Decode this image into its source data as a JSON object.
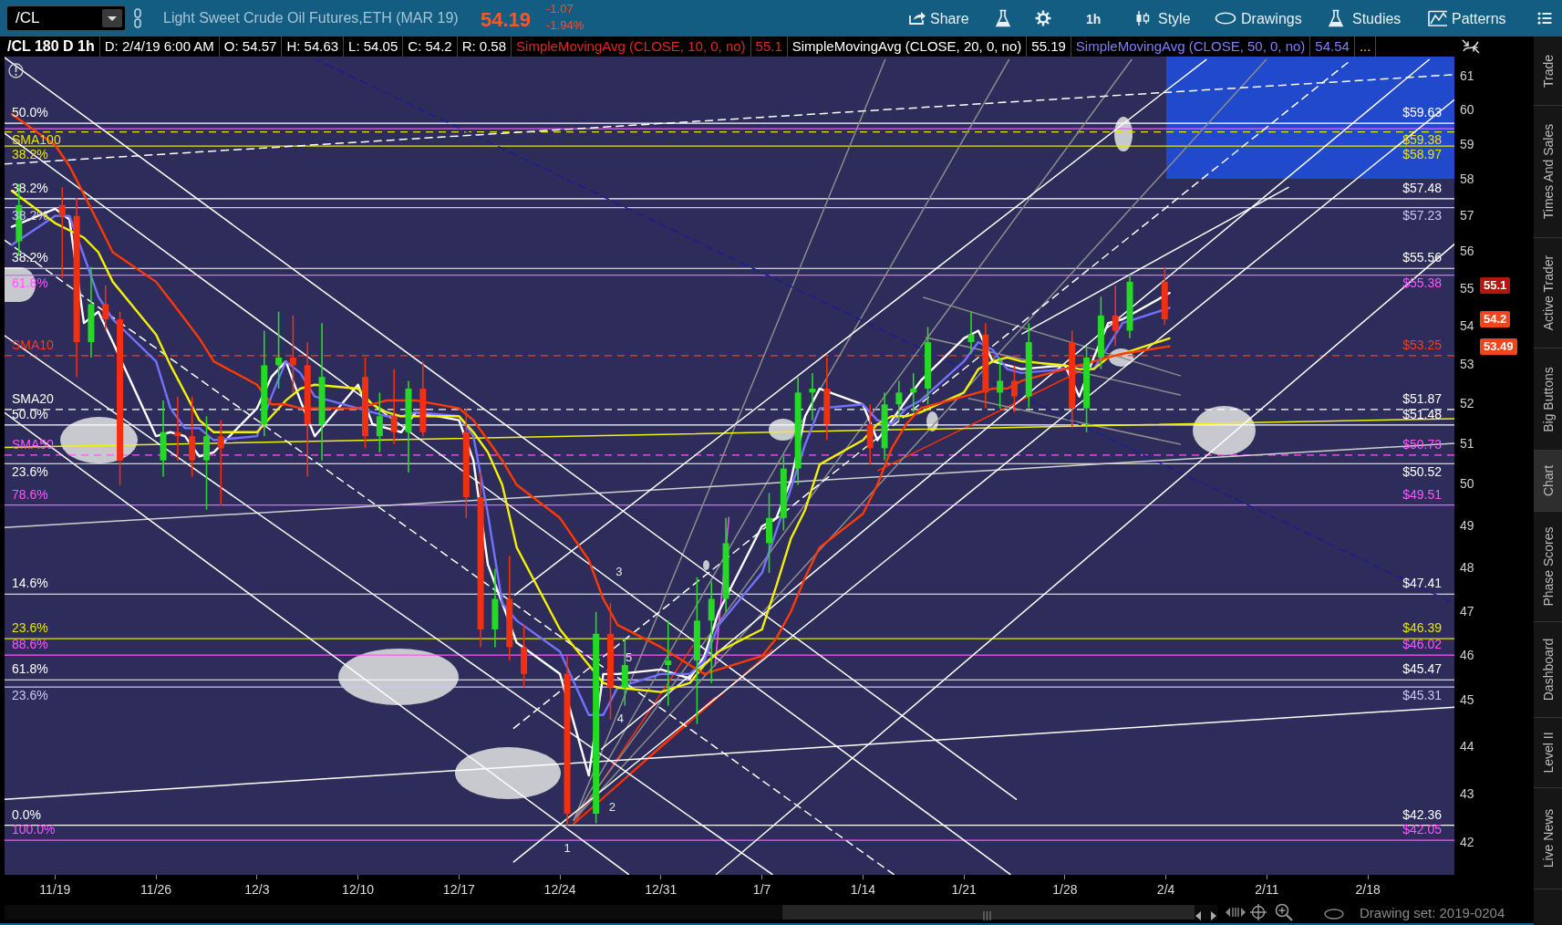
{
  "chart_data": {
    "type": "candlestick",
    "title": "Light Sweet Crude Oil Futures,ETH (MAR 19)",
    "subtitle": "/CL 180 D 1h",
    "x": [
      "2018-11-16T12:00",
      "2018-11-19T12:00",
      "2018-11-20T12:00",
      "2018-11-21T12:00",
      "2018-11-22T12:00",
      "2018-11-23T12:00",
      "2018-11-26T12:00",
      "2018-11-27T12:00",
      "2018-11-28T12:00",
      "2018-11-29T12:00",
      "2018-11-30T12:00",
      "2018-12-03T12:00",
      "2018-12-04T12:00",
      "2018-12-05T12:00",
      "2018-12-06T12:00",
      "2018-12-07T12:00",
      "2018-12-10T12:00",
      "2018-12-11T12:00",
      "2018-12-12T12:00",
      "2018-12-13T12:00",
      "2018-12-14T12:00",
      "2018-12-17T12:00",
      "2018-12-18T12:00",
      "2018-12-19T12:00",
      "2018-12-20T12:00",
      "2018-12-21T12:00",
      "2018-12-24T12:00",
      "2018-12-26T12:00",
      "2018-12-27T12:00",
      "2018-12-28T12:00",
      "2018-12-31T12:00",
      "2019-01-02T12:00",
      "2019-01-03T12:00",
      "2019-01-04T12:00",
      "2019-01-07T12:00",
      "2019-01-08T12:00",
      "2019-01-09T12:00",
      "2019-01-10T12:00",
      "2019-01-11T12:00",
      "2019-01-14T12:00",
      "2019-01-15T12:00",
      "2019-01-16T12:00",
      "2019-01-17T12:00",
      "2019-01-18T12:00",
      "2019-01-21T12:00",
      "2019-01-22T12:00",
      "2019-01-23T12:00",
      "2019-01-24T12:00",
      "2019-01-25T12:00",
      "2019-01-28T12:00",
      "2019-01-29T12:00",
      "2019-01-30T12:00",
      "2019-01-31T12:00",
      "2019-02-01T12:00",
      "2019-02-03T22:00"
    ],
    "ohlc": [
      [
        56.3,
        57.9,
        55.9,
        57.3
      ],
      [
        57.3,
        57.8,
        55.3,
        57.0
      ],
      [
        57.0,
        57.5,
        52.7,
        53.6
      ],
      [
        53.6,
        55.6,
        53.2,
        54.6
      ],
      [
        54.6,
        55.1,
        53.9,
        54.2
      ],
      [
        54.2,
        54.4,
        50.0,
        50.6
      ],
      [
        50.6,
        52.1,
        50.2,
        51.3
      ],
      [
        51.3,
        52.2,
        50.6,
        51.2
      ],
      [
        51.2,
        52.2,
        50.2,
        50.6
      ],
      [
        50.6,
        51.7,
        49.4,
        51.2
      ],
      [
        51.2,
        51.6,
        49.5,
        50.9
      ],
      [
        51.5,
        53.9,
        51.2,
        53.0
      ],
      [
        53.0,
        54.4,
        52.4,
        53.2
      ],
      [
        53.2,
        54.3,
        52.3,
        53.0
      ],
      [
        53.0,
        53.6,
        50.2,
        51.5
      ],
      [
        51.5,
        54.1,
        50.6,
        52.7
      ],
      [
        52.7,
        53.2,
        50.9,
        51.2
      ],
      [
        51.2,
        52.3,
        50.8,
        51.7
      ],
      [
        51.7,
        52.9,
        51.0,
        51.3
      ],
      [
        51.3,
        52.6,
        50.3,
        52.4
      ],
      [
        52.4,
        53.1,
        51.2,
        51.3
      ],
      [
        51.3,
        51.9,
        49.2,
        49.7
      ],
      [
        49.7,
        50.3,
        46.2,
        46.6
      ],
      [
        46.6,
        48.0,
        46.2,
        47.3
      ],
      [
        47.3,
        48.3,
        45.9,
        46.2
      ],
      [
        46.2,
        46.7,
        45.3,
        45.6
      ],
      [
        45.6,
        46.0,
        42.36,
        42.6
      ],
      [
        42.6,
        47.0,
        42.4,
        46.5
      ],
      [
        46.5,
        47.2,
        44.6,
        45.3
      ],
      [
        45.3,
        46.4,
        44.9,
        45.8
      ],
      [
        45.8,
        46.8,
        44.9,
        45.9
      ],
      [
        45.9,
        47.8,
        44.5,
        46.8
      ],
      [
        46.8,
        47.7,
        45.4,
        47.3
      ],
      [
        47.3,
        49.2,
        47.0,
        48.6
      ],
      [
        48.6,
        49.8,
        47.9,
        49.2
      ],
      [
        49.2,
        50.7,
        48.9,
        50.4
      ],
      [
        50.4,
        52.7,
        50.0,
        52.3
      ],
      [
        52.3,
        52.8,
        51.6,
        52.4
      ],
      [
        52.4,
        53.2,
        51.1,
        51.5
      ],
      [
        51.5,
        52.0,
        50.5,
        50.9
      ],
      [
        50.9,
        52.3,
        50.6,
        52.0
      ],
      [
        52.0,
        52.6,
        51.6,
        52.3
      ],
      [
        52.3,
        52.8,
        51.8,
        52.4
      ],
      [
        52.4,
        54.0,
        52.0,
        53.6
      ],
      [
        53.6,
        54.4,
        53.3,
        53.8
      ],
      [
        53.8,
        54.1,
        51.9,
        52.3
      ],
      [
        52.3,
        53.2,
        51.9,
        52.6
      ],
      [
        52.6,
        53.0,
        51.8,
        52.2
      ],
      [
        52.2,
        54.1,
        51.9,
        53.6
      ],
      [
        53.6,
        53.9,
        51.4,
        51.9
      ],
      [
        51.9,
        53.5,
        51.3,
        53.2
      ],
      [
        53.2,
        54.8,
        52.9,
        54.3
      ],
      [
        54.3,
        55.1,
        53.5,
        53.9
      ],
      [
        53.9,
        55.4,
        53.7,
        55.2
      ],
      [
        55.2,
        55.6,
        54.05,
        54.2
      ]
    ],
    "colors": [
      "#26d926",
      "#f03010",
      "#f03010",
      "#26d926",
      "#f03010",
      "#f03010",
      "#26d926",
      "#f03010",
      "#f03010",
      "#26d926",
      "#f03010",
      "#26d926",
      "#26d926",
      "#f03010",
      "#f03010",
      "#26d926",
      "#f03010",
      "#26d926",
      "#f03010",
      "#26d926",
      "#f03010",
      "#f03010",
      "#f03010",
      "#26d926",
      "#f03010",
      "#f03010",
      "#f03010",
      "#26d926",
      "#f03010",
      "#26d926",
      "#26d926",
      "#26d926",
      "#26d926",
      "#26d926",
      "#26d926",
      "#26d926",
      "#26d926",
      "#26d926",
      "#f03010",
      "#f03010",
      "#26d926",
      "#26d926",
      "#26d926",
      "#26d926",
      "#26d926",
      "#f03010",
      "#26d926",
      "#f03010",
      "#26d926",
      "#f03010",
      "#26d926",
      "#26d926",
      "#f03010",
      "#26d926",
      "#f03010"
    ],
    "series": [
      {
        "type": "line",
        "x": [
          "2018-11-16T00:00",
          "2018-11-19T00:00",
          "2018-11-20T00:00",
          "2018-11-21T00:00",
          "2018-11-22T00:00",
          "2018-11-23T00:00",
          "2018-11-26T00:00",
          "2018-11-27T00:00",
          "2018-11-28T00:00",
          "2018-11-29T00:00",
          "2018-11-30T00:00",
          "2018-12-03T00:00",
          "2018-12-04T00:00",
          "2018-12-05T00:00",
          "2018-12-06T00:00",
          "2018-12-07T00:00",
          "2018-12-10T00:00",
          "2018-12-11T00:00",
          "2018-12-12T00:00",
          "2018-12-13T00:00",
          "2018-12-14T00:00",
          "2018-12-17T00:00",
          "2018-12-18T00:00",
          "2018-12-19T00:00",
          "2018-12-20T00:00",
          "2018-12-21T00:00",
          "2018-12-24T00:00",
          "2018-12-26T00:00",
          "2018-12-27T00:00",
          "2018-12-28T00:00",
          "2018-12-31T00:00",
          "2019-01-02T00:00",
          "2019-01-03T00:00",
          "2019-01-04T00:00",
          "2019-01-07T00:00",
          "2019-01-08T00:00",
          "2019-01-09T00:00",
          "2019-01-10T00:00",
          "2019-01-11T00:00",
          "2019-01-14T00:00",
          "2019-01-15T00:00",
          "2019-01-16T00:00",
          "2019-01-17T00:00",
          "2019-01-18T00:00",
          "2019-01-21T00:00",
          "2019-01-22T00:00",
          "2019-01-23T00:00",
          "2019-01-24T00:00",
          "2019-01-25T00:00",
          "2019-01-28T00:00",
          "2019-01-29T00:00",
          "2019-01-30T00:00",
          "2019-01-31T00:00",
          "2019-02-01T00:00",
          "2019-02-04T06:00"
        ],
        "values": [
          59.9,
          59.0,
          58.4,
          57.6,
          56.8,
          56.0,
          55.2,
          54.7,
          54.2,
          53.7,
          53.1,
          52.5,
          52.0,
          52.0,
          51.9,
          51.9,
          51.9,
          52.0,
          52.1,
          52.1,
          52.1,
          51.9,
          51.6,
          51.1,
          50.6,
          50.0,
          49.2,
          48.2,
          47.3,
          46.7,
          46.2,
          45.8,
          45.6,
          45.7,
          46.0,
          46.4,
          47.0,
          47.8,
          48.5,
          49.3,
          50.0,
          50.9,
          51.5,
          51.9,
          52.2,
          52.3,
          52.4,
          52.4,
          52.6,
          52.9,
          53.0,
          53.1,
          53.2,
          53.3,
          53.49
        ],
        "color": "#ff3a00"
      },
      {
        "type": "line",
        "x": [
          "2018-11-16T00:00",
          "2018-11-19T00:00",
          "2018-11-20T00:00",
          "2018-11-21T00:00",
          "2018-11-22T00:00",
          "2018-11-23T00:00",
          "2018-11-26T00:00",
          "2018-11-27T00:00",
          "2018-11-28T00:00",
          "2018-11-29T00:00",
          "2018-11-30T00:00",
          "2018-12-03T00:00",
          "2018-12-04T00:00",
          "2018-12-05T00:00",
          "2018-12-06T00:00",
          "2018-12-07T00:00",
          "2018-12-10T00:00",
          "2018-12-11T00:00",
          "2018-12-12T00:00",
          "2018-12-13T00:00",
          "2018-12-14T00:00",
          "2018-12-17T00:00",
          "2018-12-18T00:00",
          "2018-12-19T00:00",
          "2018-12-20T00:00",
          "2018-12-21T00:00",
          "2018-12-24T00:00",
          "2018-12-26T00:00",
          "2018-12-27T00:00",
          "2018-12-28T00:00",
          "2018-12-31T00:00",
          "2019-01-02T00:00",
          "2019-01-03T00:00",
          "2019-01-04T00:00",
          "2019-01-07T00:00",
          "2019-01-08T00:00",
          "2019-01-09T00:00",
          "2019-01-10T00:00",
          "2019-01-11T00:00",
          "2019-01-14T00:00",
          "2019-01-15T00:00",
          "2019-01-16T00:00",
          "2019-01-17T00:00",
          "2019-01-18T00:00",
          "2019-01-21T00:00",
          "2019-01-22T00:00",
          "2019-01-23T00:00",
          "2019-01-24T00:00",
          "2019-01-25T00:00",
          "2019-01-28T00:00",
          "2019-01-29T00:00",
          "2019-01-30T00:00",
          "2019-01-31T00:00",
          "2019-02-01T00:00",
          "2019-02-04T06:00"
        ],
        "values": [
          57.7,
          56.8,
          56.6,
          56.4,
          56.0,
          55.2,
          53.8,
          53.0,
          52.3,
          51.6,
          51.3,
          51.3,
          51.7,
          52.1,
          52.4,
          52.5,
          52.4,
          52.0,
          51.8,
          51.7,
          51.7,
          51.7,
          51.3,
          50.8,
          50.0,
          48.5,
          46.6,
          45.8,
          45.4,
          45.3,
          45.2,
          45.4,
          45.8,
          46.1,
          46.6,
          47.6,
          48.7,
          49.4,
          50.5,
          51.1,
          51.5,
          51.7,
          51.7,
          51.8,
          52.3,
          52.9,
          53.1,
          53.2,
          53.1,
          53.0,
          52.9,
          52.9,
          53.2,
          53.3,
          53.7
        ],
        "color": "#f2f200"
      },
      {
        "type": "line",
        "x": [
          "2018-11-16T00:00",
          "2018-11-19T00:00",
          "2018-11-20T00:00",
          "2018-11-21T00:00",
          "2018-11-22T00:00",
          "2018-11-23T00:00",
          "2018-11-26T00:00",
          "2018-11-27T00:00",
          "2018-11-28T00:00",
          "2018-11-29T00:00",
          "2018-11-30T00:00",
          "2018-12-03T00:00",
          "2018-12-04T00:00",
          "2018-12-05T00:00",
          "2018-12-06T00:00",
          "2018-12-07T00:00",
          "2018-12-10T00:00",
          "2018-12-11T00:00",
          "2018-12-12T00:00",
          "2018-12-13T00:00",
          "2018-12-14T00:00",
          "2018-12-17T00:00",
          "2018-12-18T00:00",
          "2018-12-19T00:00",
          "2018-12-20T00:00",
          "2018-12-21T00:00",
          "2018-12-24T00:00",
          "2018-12-26T00:00",
          "2018-12-27T00:00",
          "2018-12-28T00:00",
          "2018-12-31T00:00",
          "2019-01-02T00:00",
          "2019-01-03T00:00",
          "2019-01-04T00:00",
          "2019-01-07T00:00",
          "2019-01-08T00:00",
          "2019-01-09T00:00",
          "2019-01-10T00:00",
          "2019-01-11T00:00",
          "2019-01-14T00:00",
          "2019-01-15T00:00",
          "2019-01-16T00:00",
          "2019-01-17T00:00",
          "2019-01-18T00:00",
          "2019-01-21T00:00",
          "2019-01-22T00:00",
          "2019-01-23T00:00",
          "2019-01-24T00:00",
          "2019-01-25T00:00",
          "2019-01-28T00:00",
          "2019-01-29T00:00",
          "2019-01-30T00:00",
          "2019-01-31T00:00",
          "2019-02-01T00:00",
          "2019-02-04T06:00"
        ],
        "values": [
          56.2,
          57.0,
          57.0,
          55.9,
          54.8,
          54.2,
          53.1,
          51.9,
          51.4,
          51.4,
          51.1,
          51.2,
          52.2,
          53.1,
          52.8,
          52.2,
          51.9,
          51.8,
          51.7,
          51.7,
          51.8,
          51.7,
          51.2,
          49.3,
          47.2,
          46.8,
          46.1,
          44.7,
          44.7,
          45.3,
          45.6,
          45.6,
          45.9,
          46.7,
          47.9,
          48.9,
          49.9,
          51.0,
          51.9,
          52.0,
          51.6,
          51.5,
          51.9,
          52.1,
          53.1,
          53.6,
          53.4,
          52.9,
          52.8,
          52.9,
          53.0,
          52.9,
          53.5,
          54.1,
          54.5
        ],
        "color": "#7272ff"
      },
      {
        "type": "line",
        "x": [
          "2018-11-16T00:00",
          "2018-11-19T00:00",
          "2018-11-20T00:00",
          "2018-11-21T00:00",
          "2018-11-22T00:00",
          "2018-11-23T00:00",
          "2018-11-26T00:00",
          "2018-11-27T00:00",
          "2018-11-28T00:00",
          "2018-11-29T00:00",
          "2018-11-30T00:00",
          "2018-12-03T00:00",
          "2018-12-04T00:00",
          "2018-12-05T00:00",
          "2018-12-06T00:00",
          "2018-12-07T00:00",
          "2018-12-10T00:00",
          "2018-12-11T00:00",
          "2018-12-12T00:00",
          "2018-12-13T00:00",
          "2018-12-14T00:00",
          "2018-12-17T00:00",
          "2018-12-18T00:00",
          "2018-12-19T00:00",
          "2018-12-20T00:00",
          "2018-12-21T00:00",
          "2018-12-24T00:00",
          "2018-12-26T00:00",
          "2018-12-27T00:00",
          "2018-12-28T00:00",
          "2018-12-31T00:00",
          "2019-01-02T00:00",
          "2019-01-03T00:00",
          "2019-01-04T00:00",
          "2019-01-07T00:00",
          "2019-01-08T00:00",
          "2019-01-09T00:00",
          "2019-01-10T00:00",
          "2019-01-11T00:00",
          "2019-01-14T00:00",
          "2019-01-15T00:00",
          "2019-01-16T00:00",
          "2019-01-17T00:00",
          "2019-01-18T00:00",
          "2019-01-21T00:00",
          "2019-01-22T00:00",
          "2019-01-23T00:00",
          "2019-01-24T00:00",
          "2019-01-25T00:00",
          "2019-01-28T00:00",
          "2019-01-29T00:00",
          "2019-01-30T00:00",
          "2019-01-31T00:00",
          "2019-02-01T00:00",
          "2019-02-04T06:00"
        ],
        "values": [
          56.7,
          57.2,
          56.9,
          54.1,
          54.4,
          53.6,
          51.2,
          51.3,
          51.2,
          50.7,
          50.8,
          51.9,
          52.7,
          53.1,
          52.1,
          51.2,
          52.5,
          51.5,
          51.4,
          51.3,
          51.8,
          51.6,
          50.6,
          48.1,
          47.2,
          46.3,
          45.6,
          43.4,
          45.6,
          45.6,
          45.7,
          45.5,
          46.0,
          47.0,
          49.0,
          49.2,
          50.1,
          51.7,
          52.4,
          52.0,
          51.1,
          51.6,
          52.1,
          52.6,
          53.7,
          53.9,
          53.1,
          53.0,
          52.9,
          53.0,
          52.2,
          53.2,
          54.1,
          54.2,
          54.9
        ],
        "color": "#ffffff"
      },
      {
        "type": "line",
        "x": [
          "2018-11-15T12:00",
          "2019-01-24T15:00"
        ],
        "values": [
          61.57,
          42.9
        ],
        "color": "#ffffff"
      },
      {
        "type": "line",
        "x": [
          "2018-11-15T12:00",
          "2019-01-24T05:00"
        ],
        "values": [
          59.34,
          41.36
        ],
        "color": "#ffffff"
      },
      {
        "type": "line",
        "x": [
          "2018-11-15T12:00",
          "2019-01-16T03:00"
        ],
        "values": [
          56.33,
          41.36
        ],
        "color": "#ffffff",
        "line_style": "dashed"
      },
      {
        "type": "line",
        "x": [
          "2018-11-15T12:00",
          "2019-01-07T17:00"
        ],
        "values": [
          53.77,
          41.36
        ],
        "color": "#ffffff"
      },
      {
        "type": "line",
        "x": [
          "2018-11-15T12:00",
          "2018-12-28T18:00"
        ],
        "values": [
          51.79,
          41.36
        ],
        "color": "#ffffff"
      },
      {
        "type": "line",
        "x": [
          "2018-12-20T19:00",
          "2019-02-24T00:00"
        ],
        "values": [
          41.61,
          60.32
        ],
        "color": "#ffffff"
      },
      {
        "type": "line",
        "x": [
          "2018-12-26T21:00",
          "2019-02-22T06:00"
        ],
        "values": [
          43.96,
          61.51
        ],
        "color": "#ffffff"
      },
      {
        "type": "line",
        "x": [
          "2018-12-20T19:00",
          "2019-02-16T21:00"
        ],
        "values": [
          44.41,
          61.51
        ],
        "color": "#ffffff",
        "line_style": "dashed"
      },
      {
        "type": "line",
        "x": [
          "2018-12-20T21:00",
          "2019-02-06T19:00"
        ],
        "values": [
          47.39,
          61.51
        ],
        "color": "#ffffff"
      },
      {
        "type": "line",
        "x": [
          "2019-01-03T20:00",
          "2019-02-24T00:00"
        ],
        "values": [
          41.36,
          56.22
        ],
        "color": "#ffffff"
      },
      {
        "type": "line",
        "x": [
          "2019-01-25T01:00",
          "2019-02-12T12:00"
        ],
        "values": [
          53.82,
          57.8
        ],
        "color": "#ffffff"
      },
      {
        "type": "line",
        "x": [
          "2018-11-15T12:00",
          "2019-02-24T00:00"
        ],
        "values": [
          58.46,
          61.06
        ],
        "color": "#ffffff",
        "line_style": "dashed"
      },
      {
        "type": "line",
        "x": [
          "2018-11-15T12:00",
          "2019-02-24T00:00"
        ],
        "values": [
          42.9,
          44.87
        ],
        "color": "#ffffff"
      },
      {
        "type": "line",
        "x": [
          "2018-11-15T12:00",
          "2019-02-24T00:00"
        ],
        "values": [
          48.97,
          51.02
        ],
        "color": "#d0d0d0"
      },
      {
        "type": "line",
        "x": [
          "2018-11-15T12:00",
          "2019-02-24T00:00"
        ],
        "values": [
          50.92,
          51.64
        ],
        "color": "#f2f200"
      },
      {
        "type": "line",
        "x": [
          "2018-12-06T23:00",
          "2019-02-23T18:00"
        ],
        "values": [
          61.54,
          47.23
        ],
        "color": "#1c1c96",
        "line_style": "dashed"
      },
      {
        "type": "line",
        "x": [
          "2018-12-24T23:00",
          "2019-01-15T13:00"
        ],
        "values": [
          42.47,
          61.51
        ],
        "color": "#8c8c8c"
      },
      {
        "type": "line",
        "x": [
          "2018-12-24T23:00",
          "2019-01-24T03:00"
        ],
        "values": [
          42.47,
          61.51
        ],
        "color": "#8c8c8c"
      },
      {
        "type": "line",
        "x": [
          "2018-12-24T23:00",
          "2019-02-01T15:00"
        ],
        "values": [
          42.47,
          61.51
        ],
        "color": "#8c8c8c"
      },
      {
        "type": "line",
        "x": [
          "2018-12-24T23:00",
          "2019-02-10T23:00"
        ],
        "values": [
          42.47,
          61.51
        ],
        "color": "#8c8c8c"
      },
      {
        "type": "line",
        "x": [
          "2019-01-18T05:00",
          "2019-02-05T00:00"
        ],
        "values": [
          54.78,
          52.73
        ],
        "color": "#8c8c8c"
      },
      {
        "type": "line",
        "x": [
          "2019-01-18T09:00",
          "2019-02-05T00:00"
        ],
        "values": [
          53.72,
          52.24
        ],
        "color": "#8c8c8c"
      },
      {
        "type": "line",
        "x": [
          "2019-01-21T08:00",
          "2019-02-05T00:00"
        ],
        "values": [
          52.15,
          51.0
        ],
        "color": "#8c8c8c"
      },
      {
        "type": "line",
        "x": [
          "2018-12-24T23:00",
          "2019-01-02T05:00"
        ],
        "values": [
          42.39,
          46.23
        ],
        "color": "#ff3000"
      },
      {
        "type": "line",
        "x": [
          "2018-12-24T23:00",
          "2019-01-07T17:00"
        ],
        "values": [
          42.39,
          46.14
        ],
        "color": "#ff3000"
      },
      {
        "type": "line",
        "x": [
          "2018-12-24T23:00",
          "2019-01-03T18:00"
        ],
        "values": [
          42.39,
          45.08
        ],
        "color": "#ff3000"
      },
      {
        "type": "line",
        "x": [
          "2019-01-15T01:00",
          "2019-01-29T02:00"
        ],
        "values": [
          50.35,
          52.85
        ],
        "color": "#ff3000"
      },
      {
        "type": "line",
        "x": [
          "2019-01-03T18:00",
          "2019-01-04T17:00"
        ],
        "values": [
          45.78,
          49.21
        ],
        "color": "#ff55ff"
      }
    ],
    "xlim": [
      "2018-11-15T12:00",
      "2019-02-24T00:00"
    ],
    "xticks": [
      {
        "value": "2018-11-19",
        "label": "11/19"
      },
      {
        "value": "2018-11-26",
        "label": "11/26"
      },
      {
        "value": "2018-12-03",
        "label": "12/3"
      },
      {
        "value": "2018-12-10",
        "label": "12/10"
      },
      {
        "value": "2018-12-17",
        "label": "12/17"
      },
      {
        "value": "2018-12-24",
        "label": "12/24"
      },
      {
        "value": "2018-12-31",
        "label": "12/31"
      },
      {
        "value": "2019-01-07",
        "label": "1/7"
      },
      {
        "value": "2019-01-14",
        "label": "1/14"
      },
      {
        "value": "2019-01-21",
        "label": "1/21"
      },
      {
        "value": "2019-01-28",
        "label": "1/28"
      },
      {
        "value": "2019-02-04",
        "label": "2/4"
      },
      {
        "value": "2019-02-11",
        "label": "2/11"
      },
      {
        "value": "2019-02-18",
        "label": "2/18"
      }
    ],
    "ylim": [
      41.35,
      61.6
    ],
    "yticks": [
      42,
      43,
      44,
      45,
      46,
      47,
      48,
      49,
      50,
      51,
      52,
      53,
      54,
      55,
      56,
      57,
      58,
      59,
      60,
      61
    ],
    "log": true,
    "ref_lines": [
      {
        "axis": "y",
        "value": 59.63,
        "label": "$59.63",
        "color": "#ffffff"
      },
      {
        "axis": "y",
        "value": 59.47,
        "color": "#ff55ff"
      },
      {
        "axis": "y",
        "value": 59.38,
        "label": "$59.38",
        "color": "#e6e600",
        "line_style": "dashed"
      },
      {
        "axis": "y",
        "value": 58.97,
        "label": "$58.97",
        "color": "#e6e600"
      },
      {
        "axis": "y",
        "value": 57.48,
        "label": "$57.48",
        "color": "#ffffff"
      },
      {
        "axis": "y",
        "value": 57.23,
        "label": "$57.23",
        "color": "#c8c8f0"
      },
      {
        "axis": "y",
        "value": 55.56,
        "label": "$55.56",
        "color": "#ffffff"
      },
      {
        "axis": "y",
        "value": 55.38,
        "label": "$55.38",
        "color": "#ff55ff"
      },
      {
        "axis": "y",
        "value": 53.25,
        "label": "$53.25",
        "color": "#ff3a1a",
        "line_style": "dashed"
      },
      {
        "axis": "y",
        "value": 51.87,
        "label": "$51.87",
        "color": "#ffffff",
        "line_style": "dashed"
      },
      {
        "axis": "y",
        "value": 51.48,
        "label": "$51.48",
        "color": "#ffffff"
      },
      {
        "axis": "y",
        "value": 50.73,
        "label": "$50.73",
        "color": "#ff55ff",
        "line_style": "dashed"
      },
      {
        "axis": "y",
        "value": 50.52,
        "label": "$50.52",
        "color": "#ffffff"
      },
      {
        "axis": "y",
        "value": 49.51,
        "label": "$49.51",
        "color": "#ff55ff"
      },
      {
        "axis": "y",
        "value": 47.41,
        "label": "$47.41",
        "color": "#ffffff"
      },
      {
        "axis": "y",
        "value": 46.39,
        "label": "$46.39",
        "color": "#e6e600"
      },
      {
        "axis": "y",
        "value": 46.02,
        "label": "$46.02",
        "color": "#ff55ff"
      },
      {
        "axis": "y",
        "value": 45.47,
        "label": "$45.47",
        "color": "#ffffff"
      },
      {
        "axis": "y",
        "value": 45.31,
        "label": "$45.31",
        "color": "#c8c8f0"
      },
      {
        "axis": "y",
        "value": 42.36,
        "label": "$42.36",
        "color": "#ffffff"
      },
      {
        "axis": "y",
        "value": 42.05,
        "label": "$42.05",
        "color": "#ff55ff"
      }
    ],
    "annotations": [
      "/CL",
      "54.19",
      "-1.07",
      "-1.94%",
      "Share",
      "1h",
      "Style",
      "Drawings",
      "Studies",
      "Patterns",
      "D: 2/4/19 6:00 AM",
      "O: 54.57",
      "H: 54.63",
      "L: 54.05",
      "C: 54.2",
      "R: 0.58",
      "SimpleMovingAvg (CLOSE, 10, 0, no)",
      "55.1",
      "SimpleMovingAvg (CLOSE, 20, 0, no)",
      "55.19",
      "SimpleMovingAvg (CLOSE, 50, 0, no)",
      "54.54",
      "...",
      "Trade",
      "Times And Sales",
      "Active Trader",
      "Big Buttons",
      "Chart",
      "Phase Scores",
      "Dashboard",
      "Level II",
      "Live News",
      "Drawing set: 2019-0204",
      "55.1",
      "54.2",
      "53.49",
      {
        "text": "50.0%",
        "x": "2018-11-15T12:00",
        "y": 59.63
      },
      {
        "text": "SMA100",
        "x": "2018-11-15T12:00",
        "y": 59.38
      },
      {
        "text": "38.2%",
        "x": "2018-11-15T12:00",
        "y": 58.97
      },
      {
        "text": "38.2%",
        "x": "2018-11-15T12:00",
        "y": 57.48
      },
      {
        "text": "38.2%",
        "x": "2018-11-15T12:00",
        "y": 57.23
      },
      {
        "text": "38.2%",
        "x": "2018-11-15T12:00",
        "y": 55.56
      },
      {
        "text": "61.8%",
        "x": "2018-11-15T12:00",
        "y": 55.38
      },
      {
        "text": "SMA10",
        "x": "2018-11-15T12:00",
        "y": 53.25
      },
      {
        "text": "SMA20",
        "x": "2018-11-15T12:00",
        "y": 51.87
      },
      {
        "text": "50.0%",
        "x": "2018-11-15T12:00",
        "y": 51.48
      },
      {
        "text": "SMA50",
        "x": "2018-11-15T12:00",
        "y": 50.73
      },
      {
        "text": "23.6%",
        "x": "2018-11-15T12:00",
        "y": 50.52
      },
      {
        "text": "78.6%",
        "x": "2018-11-15T12:00",
        "y": 49.51
      },
      {
        "text": "14.6%",
        "x": "2018-11-15T12:00",
        "y": 47.41
      },
      {
        "text": "23.6%",
        "x": "2018-11-15T12:00",
        "y": 46.39
      },
      {
        "text": "88.6%",
        "x": "2018-11-15T12:00",
        "y": 46.02
      },
      {
        "text": "61.8%",
        "x": "2018-11-15T12:00",
        "y": 45.47
      },
      {
        "text": "23.6%",
        "x": "2018-11-15T12:00",
        "y": 45.31
      },
      {
        "text": "0.0%",
        "x": "2018-11-15T12:00",
        "y": 42.36
      },
      {
        "text": "100.0%",
        "x": "2018-11-15T12:00",
        "y": 42.05
      },
      {
        "text": "1",
        "x": "2018-12-24T12:00",
        "y": 42.36
      },
      {
        "text": "2",
        "x": "2018-12-26T22:00",
        "y": 43.03
      },
      {
        "text": "3",
        "x": "2018-12-27T02:00",
        "y": 47.36
      },
      {
        "text": "4",
        "x": "2018-12-27T12:00",
        "y": 44.6
      },
      {
        "text": "5",
        "x": "2018-12-28T02:00",
        "y": 45.95
      }
    ]
  }
}
